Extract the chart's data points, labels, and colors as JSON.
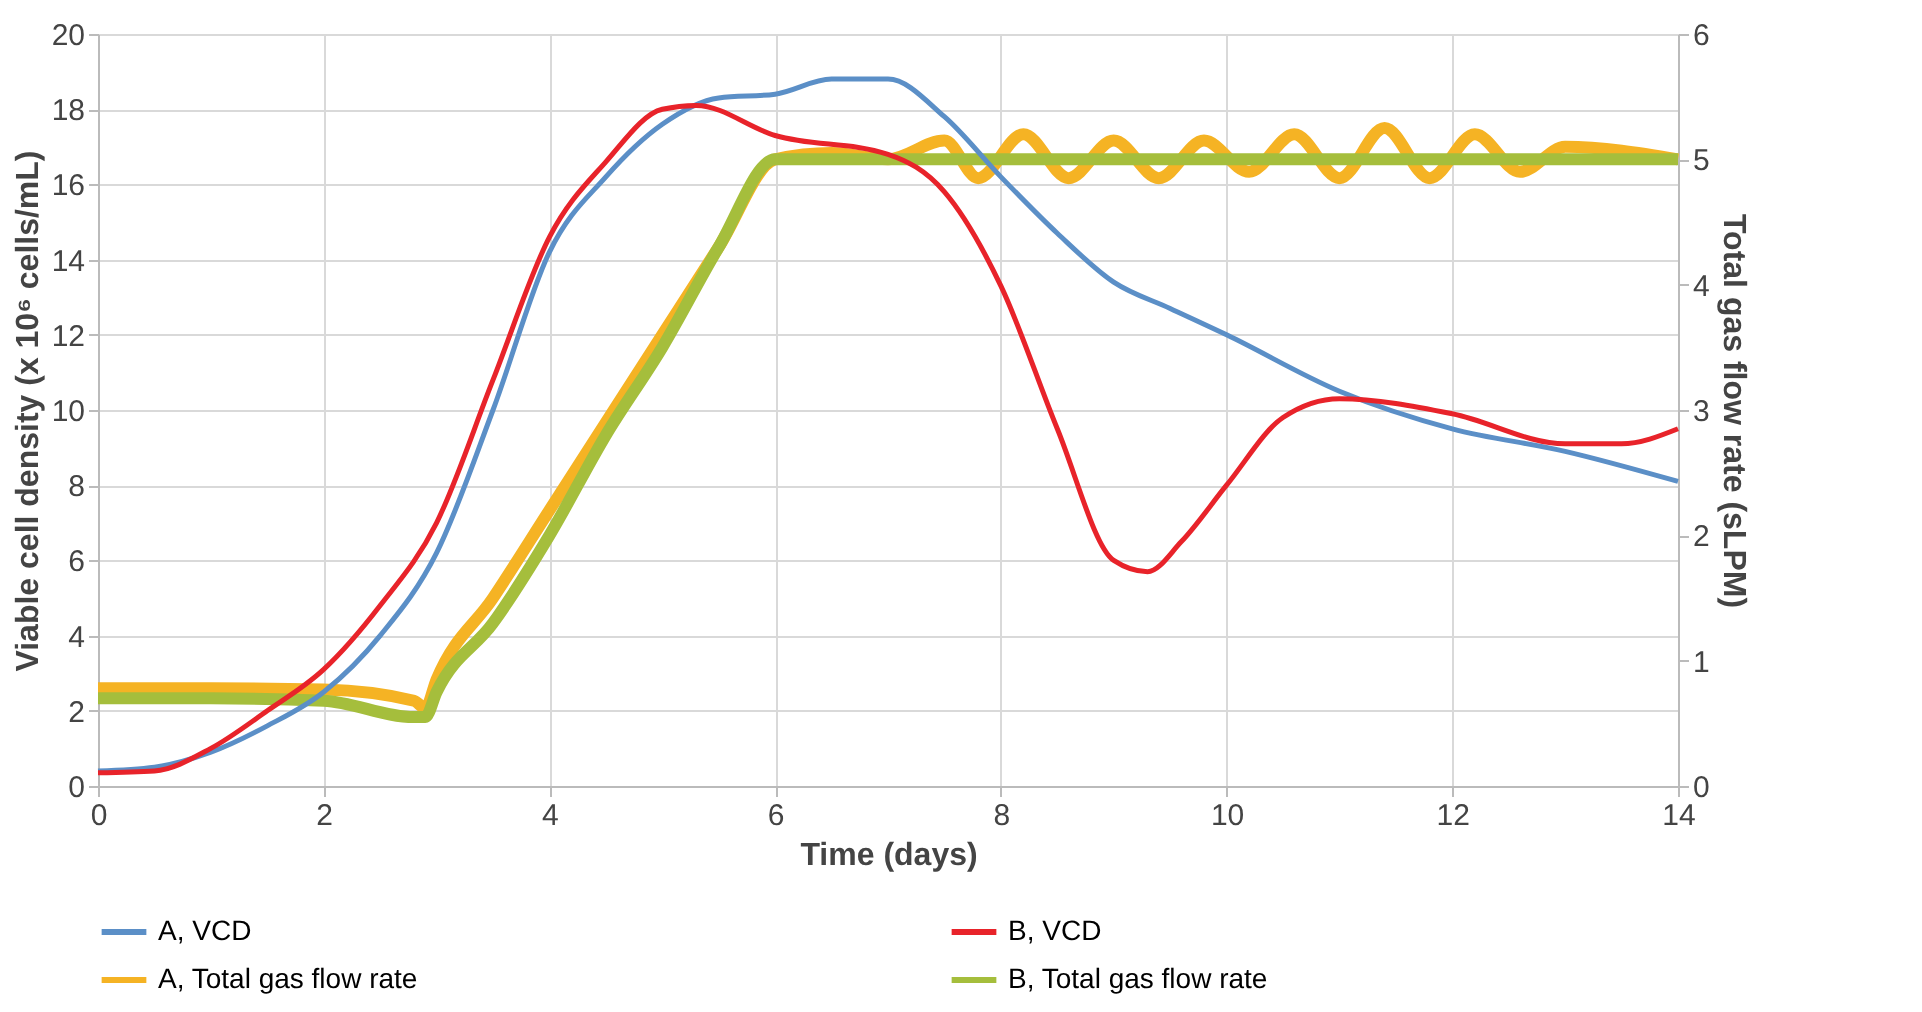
{
  "chart_data": {
    "type": "line",
    "xlabel": "Time (days)",
    "ylabel": "Viable cell density (x 10⁶ cells/mL)",
    "y2label": "Total gas flow rate (sLPM)",
    "xlim": [
      0,
      14
    ],
    "xticks": [
      0,
      2,
      4,
      6,
      8,
      10,
      12,
      14
    ],
    "ylim": [
      0,
      20
    ],
    "yticks": [
      0,
      2,
      4,
      6,
      8,
      10,
      12,
      14,
      16,
      18,
      20
    ],
    "y2lim": [
      0,
      6
    ],
    "y2ticks": [
      0,
      1,
      2,
      3,
      4,
      5,
      6
    ],
    "grid": true,
    "legend": "bottom",
    "marker": "none",
    "line_style": "solid",
    "series": [
      {
        "name": "A, VCD",
        "color": "#5b8fc7",
        "x": [
          0,
          0.5,
          1,
          1.5,
          2,
          2.5,
          3,
          3.5,
          4,
          4.5,
          5,
          5.5,
          6,
          6.5,
          7,
          7.5,
          8,
          8.5,
          9,
          9.5,
          10,
          11,
          12,
          13,
          14
        ],
        "values": [
          0.4,
          0.5,
          0.9,
          1.6,
          2.5,
          4.0,
          6.2,
          10.0,
          14.2,
          16.2,
          17.6,
          18.3,
          18.4,
          18.8,
          18.8,
          17.8,
          16.2,
          14.7,
          13.4,
          12.7,
          12.0,
          10.5,
          9.5,
          8.9,
          8.1
        ]
      },
      {
        "name": "B, VCD",
        "color": "#e8232a",
        "x": [
          0,
          0.5,
          1,
          1.5,
          2,
          2.5,
          3,
          3.5,
          4,
          4.5,
          5,
          5.3,
          6,
          7,
          7.5,
          8,
          8.5,
          9,
          9.3,
          9.6,
          10,
          10.5,
          11,
          12,
          13,
          13.5,
          14
        ],
        "values": [
          0.35,
          0.4,
          1.0,
          2.0,
          3.1,
          4.8,
          7.0,
          10.8,
          14.6,
          16.6,
          18.0,
          18.1,
          17.3,
          16.8,
          15.8,
          13.3,
          9.5,
          6.0,
          5.7,
          6.5,
          8.0,
          9.8,
          10.3,
          9.9,
          9.1,
          9.1,
          9.5
        ]
      },
      {
        "name": "A, Total gas flow rate",
        "color": "#f5b324",
        "axis": "y2",
        "x": [
          0,
          1,
          2,
          2.8,
          2.9,
          3.0,
          3.5,
          4,
          4.5,
          5,
          5.5,
          6,
          6.5,
          7,
          7.5,
          7.8,
          8.2,
          8.6,
          9,
          9.4,
          9.8,
          10.2,
          10.6,
          11,
          11.4,
          11.8,
          12.2,
          12.6,
          13,
          14
        ],
        "values": [
          0.78,
          0.78,
          0.77,
          0.68,
          0.62,
          0.85,
          1.5,
          2.2,
          2.9,
          3.6,
          4.3,
          5.0,
          5.05,
          5.0,
          5.15,
          4.85,
          5.2,
          4.85,
          5.15,
          4.85,
          5.15,
          4.9,
          5.2,
          4.85,
          5.25,
          4.85,
          5.2,
          4.9,
          5.1,
          5.0
        ]
      },
      {
        "name": "B, Total gas flow rate",
        "color": "#a5be3c",
        "axis": "y2",
        "x": [
          0,
          1,
          2,
          2.8,
          2.9,
          3.0,
          3.5,
          4,
          4.5,
          5,
          5.5,
          6,
          7,
          8,
          9,
          10,
          11,
          12,
          13,
          14
        ],
        "values": [
          0.7,
          0.7,
          0.68,
          0.55,
          0.55,
          0.75,
          1.3,
          2.0,
          2.8,
          3.5,
          4.3,
          5.0,
          5.0,
          5.0,
          5.0,
          5.0,
          5.0,
          5.0,
          5.0,
          5.0
        ]
      }
    ]
  }
}
